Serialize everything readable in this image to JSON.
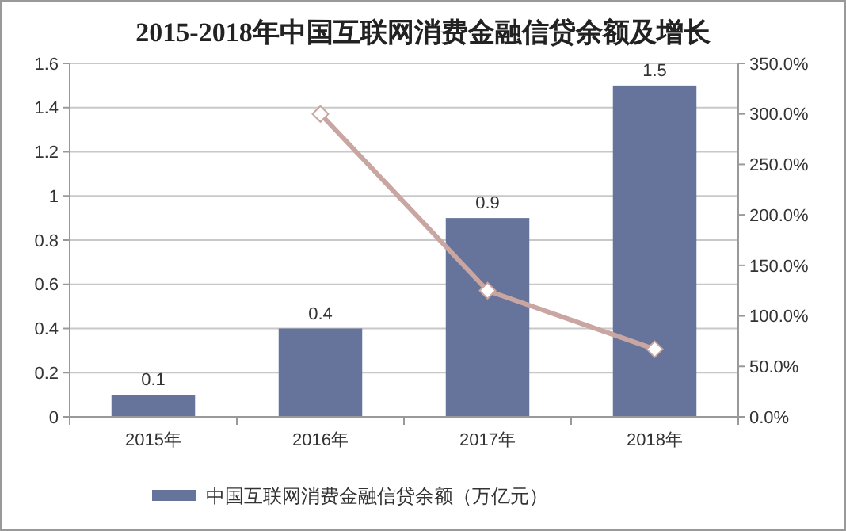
{
  "chart_data": {
    "type": "bar",
    "title": "2015-2018年中国互联网消费金融信贷余额及增长",
    "categories": [
      "2015年",
      "2016年",
      "2017年",
      "2018年"
    ],
    "series": [
      {
        "name": "中国互联网消费金融信贷余额（万亿元）",
        "color": "#66739a",
        "values": [
          0.1,
          0.4,
          0.9,
          1.5
        ],
        "value_labels": [
          "0.1",
          "0.4",
          "0.9",
          "1.5"
        ]
      },
      {
        "type": "line",
        "axis": "y2",
        "color": "#c9a6a2",
        "marker": "diamond",
        "values": [
          null,
          300,
          125,
          67
        ]
      }
    ],
    "ylim": [
      0,
      1.6
    ],
    "yticks": [
      {
        "value": 0,
        "label": "0"
      },
      {
        "value": 0.2,
        "label": "0.2"
      },
      {
        "value": 0.4,
        "label": "0.4"
      },
      {
        "value": 0.6,
        "label": "0.6"
      },
      {
        "value": 0.8,
        "label": "0.8"
      },
      {
        "value": 1,
        "label": "1"
      },
      {
        "value": 1.2,
        "label": "1.2"
      },
      {
        "value": 1.4,
        "label": "1.4"
      },
      {
        "value": 1.6,
        "label": "1.6"
      }
    ],
    "y2lim": [
      0,
      350
    ],
    "y2ticks": [
      {
        "value": 0,
        "label": "0.0%"
      },
      {
        "value": 50,
        "label": "50.0%"
      },
      {
        "value": 100,
        "label": "100.0%"
      },
      {
        "value": 150,
        "label": "150.0%"
      },
      {
        "value": 200,
        "label": "200.0%"
      },
      {
        "value": 250,
        "label": "250.0%"
      },
      {
        "value": 300,
        "label": "300.0%"
      },
      {
        "value": 350,
        "label": "350.0%"
      }
    ],
    "grid": "y",
    "legend": "bottom"
  }
}
